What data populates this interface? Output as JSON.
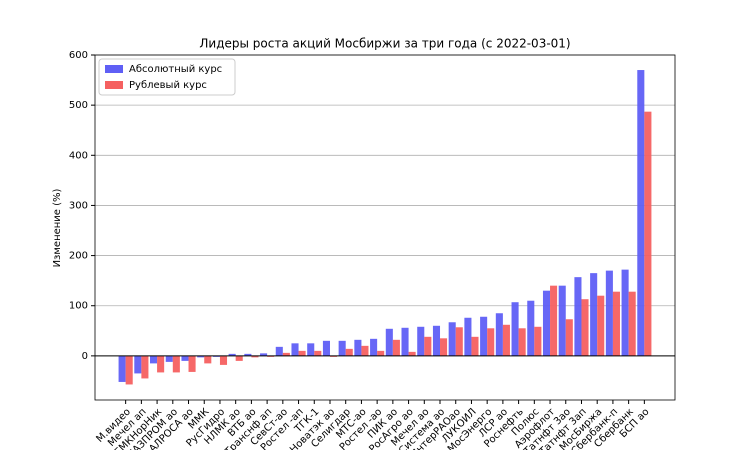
{
  "chart_data": {
    "type": "bar",
    "title": "Лидеры роста акций Мосбиржи за три года (с 2022-03-01)",
    "y_label": "Изменение (%)",
    "categories": [
      "М.видео",
      "Мечел ап",
      "ГМКНорНик",
      "ГАЗПРОМ ао",
      "АЛРОСА ао",
      "ММК",
      "РусГидро",
      "НЛМК ао",
      "ВТБ ао",
      "Транснф ап",
      "СевСт-ао",
      "Ростел -ап",
      "ТГК-1",
      "Новатэк ао",
      "Селигдар",
      "МТС-ао",
      "Ростел -ао",
      "ПИК ао",
      "РосАгро ао",
      "Мечел ао",
      "Система ао",
      "ИнтерРАОао",
      "ЛУКОИЛ",
      "МосЭнерго",
      "ЛСР ао",
      "Роснефть",
      "Полюс",
      "Аэрофлот",
      "Татнфт 3ао",
      "Татнфт 3ап",
      "МосБиржа",
      "Сбербанк-п",
      "Сбербанк",
      "БСП ао"
    ],
    "series": [
      {
        "name": "Абсолютный курс",
        "color": "#5f5ff5",
        "values": [
          -52,
          -35,
          -15,
          -12,
          -10,
          -3,
          -2,
          4,
          4,
          5,
          18,
          25,
          25,
          30,
          30,
          32,
          34,
          54,
          56,
          58,
          60,
          67,
          76,
          78,
          85,
          107,
          110,
          130,
          140,
          157,
          165,
          170,
          172,
          570
        ]
      },
      {
        "name": "Рублевый курс",
        "color": "#f56060",
        "values": [
          -57,
          -45,
          -33,
          -33,
          -32,
          -15,
          -18,
          -10,
          -3,
          -2,
          6,
          10,
          10,
          -2,
          14,
          20,
          10,
          32,
          8,
          38,
          35,
          57,
          38,
          55,
          62,
          55,
          58,
          140,
          73,
          113,
          120,
          128,
          128,
          487
        ]
      }
    ],
    "ylim": [
      -88,
      600
    ],
    "yticks": [
      0,
      100,
      200,
      300,
      400,
      500,
      600
    ],
    "grid": true,
    "legend": "upper left"
  }
}
